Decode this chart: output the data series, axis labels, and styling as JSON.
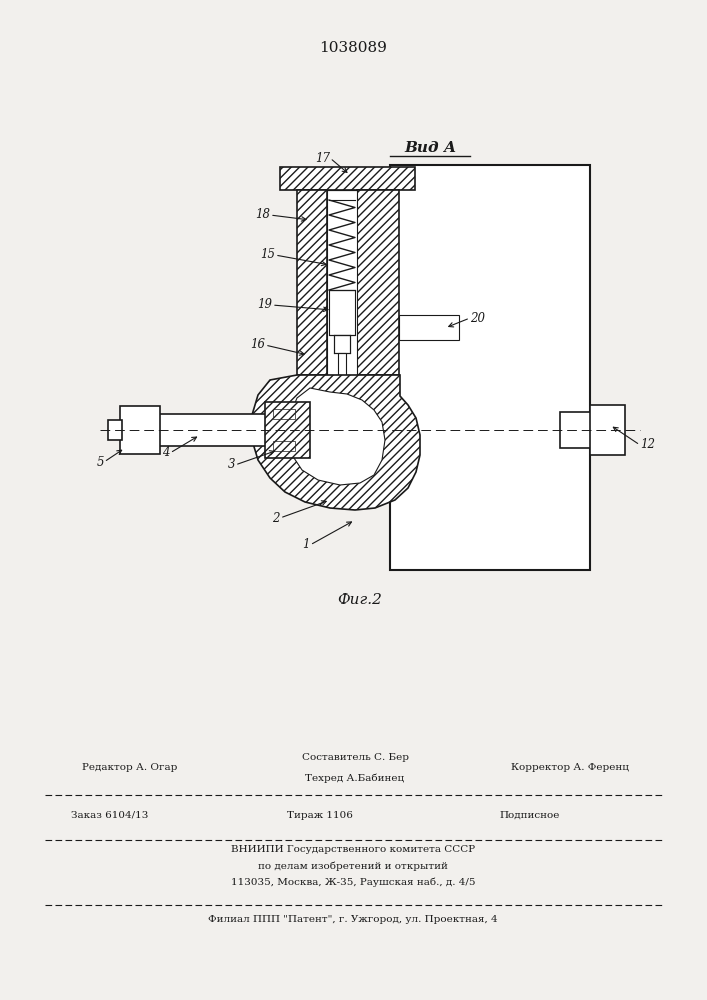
{
  "patent_number": "1038089",
  "view_label": "Вид А",
  "fig_label": "Фиг.2",
  "footer_line1_left": "Редактор А. Огар",
  "footer_line1_center_top": "Составитель С. Бер",
  "footer_line1_center_bot": "Техред А.Бабинец",
  "footer_line1_right": "Корректор А. Ференц",
  "footer_line2_col1": "Заказ 6104/13",
  "footer_line2_col2": "Тираж 1106",
  "footer_line2_col3": "Подписное",
  "footer_line3": "ВНИИПИ Государственного комитета СССР",
  "footer_line4": "по делам изобретений и открытий",
  "footer_line5": "113035, Москва, Ж-35, Раушская наб., д. 4/5",
  "footer_line6": "Филиал ППП \"Патент\", г. Ужгород, ул. Проектная, 4",
  "bg_color": "#f2f0ed",
  "line_color": "#1a1a1a",
  "white": "#ffffff"
}
